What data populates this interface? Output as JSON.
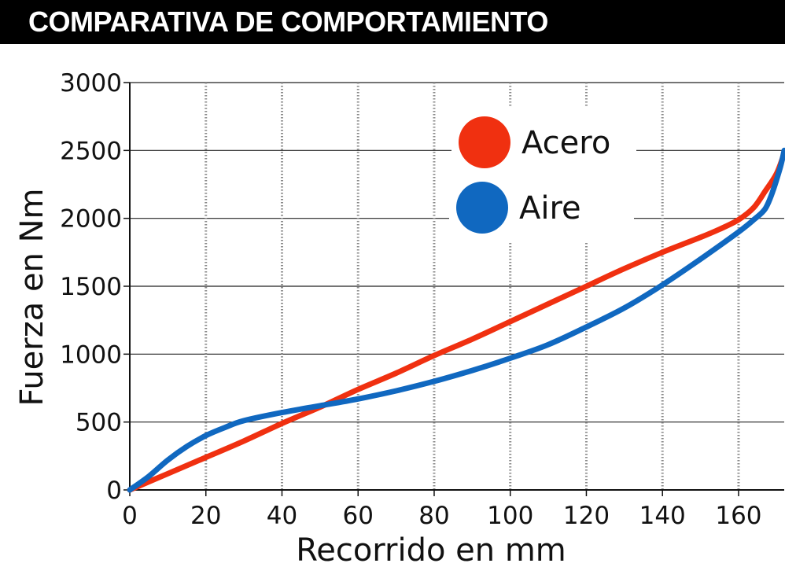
{
  "header": {
    "title": "COMPARATIVA DE COMPORTAMIENTO"
  },
  "chart_data": {
    "type": "line",
    "title": "COMPARATIVA DE COMPORTAMIENTO",
    "xlabel": "Recorrido en mm",
    "ylabel": "Fuerza en Nm",
    "xlim": [
      0,
      172
    ],
    "ylim": [
      0,
      3000
    ],
    "xticks": [
      0,
      20,
      40,
      60,
      80,
      100,
      120,
      140,
      160
    ],
    "yticks": [
      0,
      500,
      1000,
      1500,
      2000,
      2500,
      3000
    ],
    "xtick_labels": [
      "0",
      "20",
      "40",
      "60",
      "80",
      "100",
      "120",
      "140",
      "160"
    ],
    "ytick_labels": [
      "0",
      "500",
      "1000",
      "1500",
      "2000",
      "2500",
      "3000"
    ],
    "grid": {
      "horizontal": "solid",
      "vertical": "dotted"
    },
    "legend_position": "top-right",
    "series": [
      {
        "name": "Acero",
        "color": "#f03010",
        "x": [
          0,
          10,
          20,
          30,
          40,
          50,
          60,
          70,
          80,
          90,
          100,
          110,
          120,
          130,
          140,
          150,
          155,
          160,
          164,
          167,
          170,
          172
        ],
        "y": [
          0,
          120,
          240,
          360,
          490,
          610,
          740,
          860,
          990,
          1110,
          1240,
          1370,
          1500,
          1630,
          1750,
          1860,
          1920,
          1990,
          2080,
          2200,
          2330,
          2480
        ]
      },
      {
        "name": "Aire",
        "color": "#1068c0",
        "x": [
          0,
          5,
          10,
          15,
          20,
          25,
          30,
          40,
          50,
          60,
          70,
          80,
          90,
          100,
          110,
          120,
          130,
          140,
          150,
          160,
          164,
          167,
          169,
          171,
          172
        ],
        "y": [
          0,
          100,
          220,
          320,
          400,
          460,
          510,
          570,
          620,
          670,
          730,
          800,
          880,
          970,
          1070,
          1200,
          1340,
          1510,
          1700,
          1900,
          1990,
          2070,
          2200,
          2380,
          2500
        ]
      }
    ]
  }
}
